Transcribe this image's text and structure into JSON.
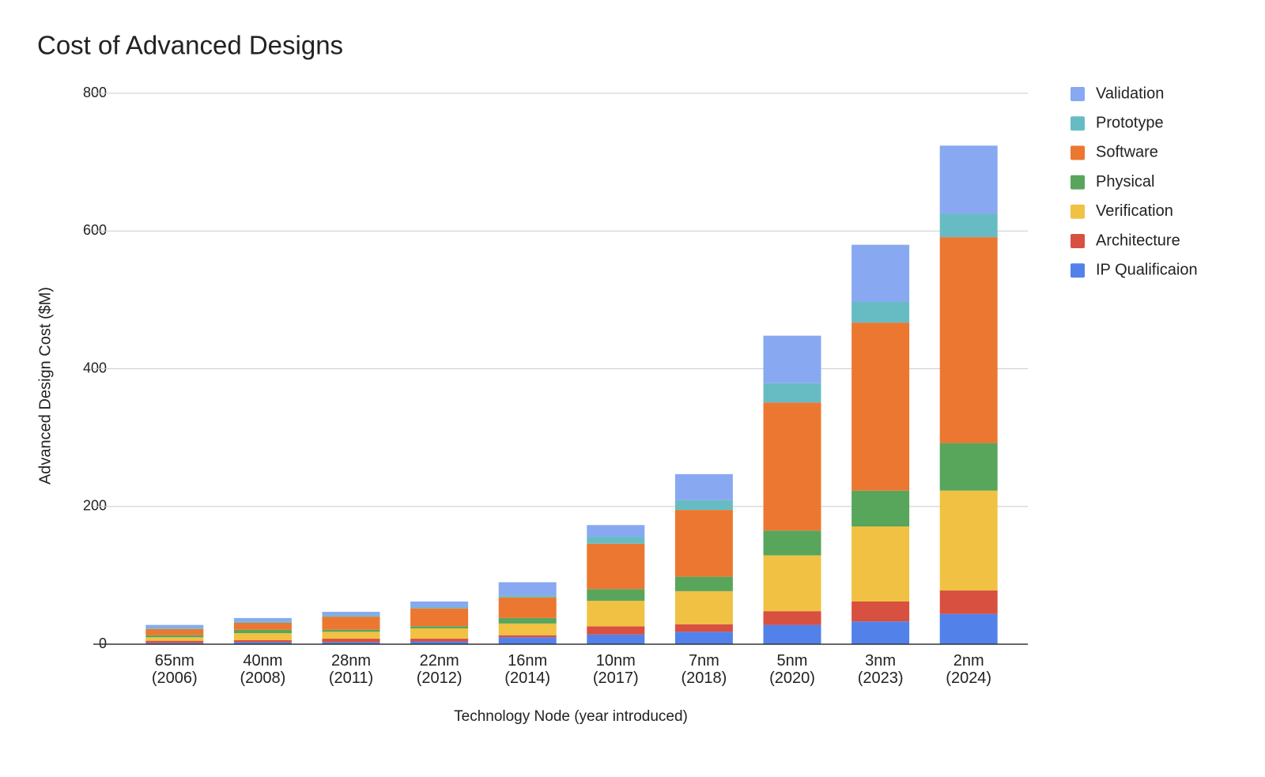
{
  "chart_data": {
    "type": "stacked_bar",
    "title": "Cost of Advanced Designs",
    "x_label": "Technology Node (year introduced)",
    "y_label": "Advanced Design Cost ($M)",
    "categories": [
      "65nm\n(2006)",
      "40nm\n(2008)",
      "28nm\n(2011)",
      "22nm\n(2012)",
      "16nm\n(2014)",
      "10nm\n(2017)",
      "7nm\n(2018)",
      "5nm\n(2020)",
      "3nm\n(2023)",
      "2nm\n(2024)"
    ],
    "series": [
      {
        "name": "IP Qualificaion",
        "color": "#5282e9",
        "values": [
          2,
          3,
          3,
          4,
          10,
          14,
          18,
          28,
          33,
          44
        ]
      },
      {
        "name": "Architecture",
        "color": "#d8503f",
        "values": [
          3,
          3,
          5,
          4,
          3,
          12,
          11,
          20,
          29,
          34
        ]
      },
      {
        "name": "Verification",
        "color": "#f1c143",
        "values": [
          5,
          10,
          10,
          15,
          17,
          37,
          48,
          81,
          109,
          145
        ]
      },
      {
        "name": "Physical",
        "color": "#58a65c",
        "values": [
          3,
          5,
          3,
          3,
          8,
          17,
          21,
          36,
          52,
          69
        ]
      },
      {
        "name": "Software",
        "color": "#ec7731",
        "values": [
          9,
          10,
          19,
          26,
          30,
          66,
          97,
          186,
          244,
          299
        ]
      },
      {
        "name": "Prototype",
        "color": "#67bcc4",
        "values": [
          2,
          2,
          2,
          2,
          3,
          10,
          14,
          28,
          30,
          34
        ]
      },
      {
        "name": "Validation",
        "color": "#88a9f1",
        "values": [
          4,
          5,
          5,
          8,
          19,
          17,
          38,
          69,
          83,
          99
        ]
      }
    ],
    "ylim": [
      0,
      800
    ],
    "yticks": [
      0,
      200,
      400,
      600,
      800
    ],
    "grid": true,
    "legend": "right"
  }
}
